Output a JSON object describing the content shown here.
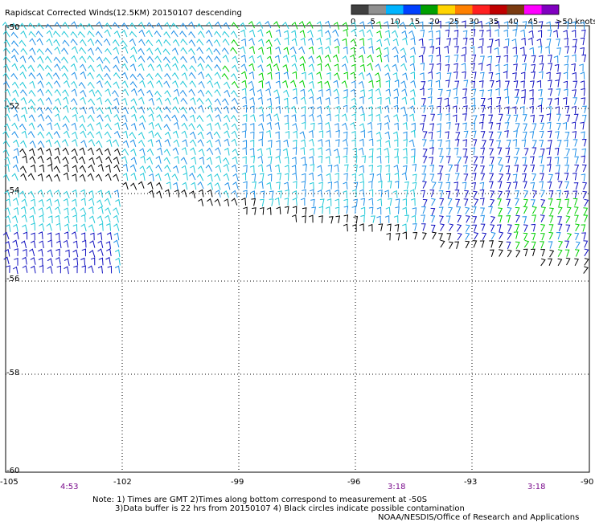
{
  "title": "Rapidscat Corrected Winds(12.5KM) 20150107 descending",
  "legend": {
    "unit_label": ">50 knots",
    "ticks": [
      "0",
      "5",
      "10",
      "15",
      "20",
      "25",
      "30",
      "35",
      "40",
      "45"
    ],
    "colors": [
      "#404040",
      "#909090",
      "#00b4ff",
      "#0040ff",
      "#00a000",
      "#ffd400",
      "#ff8000",
      "#ff2020",
      "#c00000",
      "#7a3a10",
      "#ff00ff",
      "#8000c0"
    ]
  },
  "wind_colors": {
    "low": "#000000",
    "light": "#20c8d8",
    "medium": "#2090e8",
    "strong": "#1010c0",
    "gale": "#00d000"
  },
  "axes": {
    "lat_labels": [
      "-50",
      "-52",
      "-54",
      "-56",
      "-58",
      "-60"
    ],
    "lon_labels": [
      "-105",
      "-102",
      "-99",
      "-96",
      "-93",
      "-90"
    ]
  },
  "times": [
    "4:53",
    "3:18",
    "3:18"
  ],
  "notes": {
    "line1": "Note: 1) Times are GMT 2)Times along bottom correspond to measurement at -50S",
    "line2": "3)Data buffer is 22 hrs from 20150107 4) Black circles indicate possible contamination",
    "credit": "NOAA/NESDIS/Office of Research and Applications"
  }
}
